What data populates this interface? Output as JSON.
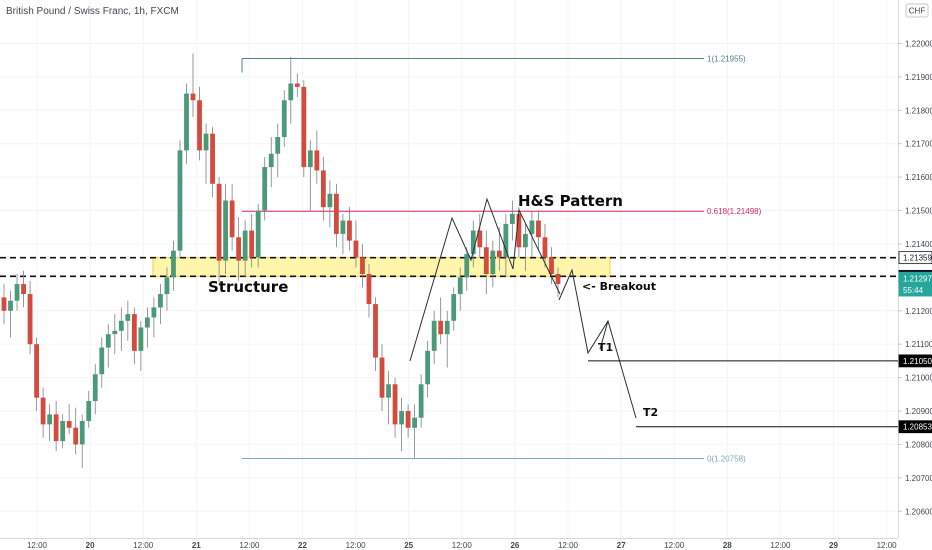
{
  "chart_data": {
    "type": "candlestick",
    "title": "British Pound / Swiss Franc, 1h, FXCM",
    "currency_label": "CHF",
    "y_ticks": [
      "1.22000",
      "1.21900",
      "1.21800",
      "1.21700",
      "1.21600",
      "1.21500",
      "1.21400",
      "1.21200",
      "1.21100",
      "1.21000",
      "1.20900",
      "1.20800",
      "1.20700",
      "1.20600"
    ],
    "x_ticks": [
      "12:00",
      "20",
      "12:00",
      "21",
      "12:00",
      "22",
      "12:00",
      "25",
      "12:00",
      "26",
      "12:00",
      "27",
      "12:00",
      "28",
      "12:00",
      "29",
      "12:00"
    ],
    "ylim": [
      1.2052,
      1.2213
    ],
    "fib_levels": [
      {
        "label": "1(1.21955)",
        "value": 1.21955,
        "color": "#4f7f8c"
      },
      {
        "label": "0.618(1.21498)",
        "value": 1.21498,
        "color": "#e0245e"
      },
      {
        "label": "0(1.20758)",
        "value": 1.20758,
        "color": "#7fa7bf"
      }
    ],
    "dashed_levels": [
      {
        "label": "1.21359",
        "value": 1.21359
      },
      {
        "label": "1.21303",
        "value": 1.21303
      }
    ],
    "price_badges": [
      {
        "label": "1.21297",
        "value": 1.21297,
        "color": "#26a69a"
      },
      {
        "label": "55:44",
        "value": 1.21262,
        "color": "#26a69a"
      },
      {
        "label": "1.21050",
        "value": 1.2105,
        "color": "#000000"
      },
      {
        "label": "1.20853",
        "value": 1.20853,
        "color": "#000000"
      }
    ],
    "annotations": {
      "pattern": "H&S Pattern",
      "structure": "Structure",
      "breakout": "<- Breakout",
      "t1": "T1",
      "t2": "T2"
    },
    "candle_colors": {
      "up": "#4a9a7a",
      "down": "#d44a3d"
    },
    "zone": {
      "top": 1.21359,
      "bottom": 1.21303,
      "color": "#fff59d"
    },
    "candles": [
      [
        1.2124,
        1.2128,
        1.2116,
        1.212
      ],
      [
        1.212,
        1.2126,
        1.2112,
        1.2123
      ],
      [
        1.2123,
        1.2131,
        1.212,
        1.2128
      ],
      [
        1.2128,
        1.2132,
        1.2121,
        1.2125
      ],
      [
        1.2125,
        1.2129,
        1.2107,
        1.211
      ],
      [
        1.211,
        1.2112,
        1.209,
        1.2094
      ],
      [
        1.2094,
        1.2097,
        1.2082,
        1.2086
      ],
      [
        1.2086,
        1.2092,
        1.2081,
        1.2089
      ],
      [
        1.2089,
        1.2093,
        1.2078,
        1.2081
      ],
      [
        1.2081,
        1.2089,
        1.2079,
        1.2087
      ],
      [
        1.2087,
        1.2092,
        1.2083,
        1.2085
      ],
      [
        1.2085,
        1.2091,
        1.2077,
        1.208
      ],
      [
        1.208,
        1.2089,
        1.2073,
        1.2087
      ],
      [
        1.2087,
        1.2096,
        1.2085,
        1.2093
      ],
      [
        1.2093,
        1.2104,
        1.2089,
        1.2101
      ],
      [
        1.2101,
        1.2112,
        1.2097,
        1.2109
      ],
      [
        1.2109,
        1.2116,
        1.2103,
        1.2113
      ],
      [
        1.2113,
        1.2119,
        1.2107,
        1.2114
      ],
      [
        1.2114,
        1.2121,
        1.2108,
        1.2117
      ],
      [
        1.2117,
        1.2123,
        1.2111,
        1.2119
      ],
      [
        1.2119,
        1.2121,
        1.2104,
        1.2108
      ],
      [
        1.2108,
        1.2117,
        1.2102,
        1.2115
      ],
      [
        1.2115,
        1.2121,
        1.2109,
        1.2118
      ],
      [
        1.2118,
        1.2124,
        1.2112,
        1.2121
      ],
      [
        1.2121,
        1.2128,
        1.2116,
        1.2125
      ],
      [
        1.2125,
        1.2133,
        1.212,
        1.213
      ],
      [
        1.213,
        1.2141,
        1.2126,
        1.2138
      ],
      [
        1.2138,
        1.2171,
        1.2136,
        1.2168
      ],
      [
        1.2168,
        1.2188,
        1.2164,
        1.2185
      ],
      [
        1.2185,
        1.2197,
        1.2178,
        1.2183
      ],
      [
        1.2183,
        1.2187,
        1.2165,
        1.2168
      ],
      [
        1.2168,
        1.2176,
        1.2158,
        1.2173
      ],
      [
        1.2173,
        1.2175,
        1.2154,
        1.2158
      ],
      [
        1.2158,
        1.216,
        1.2128,
        1.2135
      ],
      [
        1.2135,
        1.2158,
        1.2131,
        1.2153
      ],
      [
        1.2153,
        1.2158,
        1.2138,
        1.2142
      ],
      [
        1.2142,
        1.2148,
        1.2129,
        1.2135
      ],
      [
        1.2135,
        1.2147,
        1.213,
        1.2144
      ],
      [
        1.2144,
        1.2149,
        1.2133,
        1.2136
      ],
      [
        1.2136,
        1.2152,
        1.2133,
        1.215
      ],
      [
        1.215,
        1.2166,
        1.2147,
        1.2163
      ],
      [
        1.2163,
        1.2172,
        1.2157,
        1.2167
      ],
      [
        1.2167,
        1.2176,
        1.216,
        1.2172
      ],
      [
        1.2172,
        1.2186,
        1.2169,
        1.2183
      ],
      [
        1.2183,
        1.2196,
        1.2176,
        1.2188
      ],
      [
        1.2188,
        1.2191,
        1.2184,
        1.2187
      ],
      [
        1.2187,
        1.2189,
        1.216,
        1.2163
      ],
      [
        1.2163,
        1.2171,
        1.215,
        1.2168
      ],
      [
        1.2168,
        1.2174,
        1.2158,
        1.2162
      ],
      [
        1.2162,
        1.2166,
        1.2147,
        1.2151
      ],
      [
        1.2151,
        1.2159,
        1.2145,
        1.2155
      ],
      [
        1.2155,
        1.2158,
        1.2139,
        1.2143
      ],
      [
        1.2143,
        1.2149,
        1.2137,
        1.2147
      ],
      [
        1.2147,
        1.2151,
        1.2138,
        1.2141
      ],
      [
        1.2141,
        1.2147,
        1.2133,
        1.2136
      ],
      [
        1.2136,
        1.214,
        1.2127,
        1.2131
      ],
      [
        1.2131,
        1.2134,
        1.2118,
        1.2122
      ],
      [
        1.2122,
        1.2124,
        1.2102,
        1.2106
      ],
      [
        1.2106,
        1.211,
        1.209,
        1.2094
      ],
      [
        1.2094,
        1.2102,
        1.2086,
        1.2098
      ],
      [
        1.2098,
        1.21,
        1.2082,
        1.2086
      ],
      [
        1.2086,
        1.2094,
        1.2078,
        1.209
      ],
      [
        1.209,
        1.2092,
        1.2082,
        1.2085
      ],
      [
        1.2085,
        1.2092,
        1.2076,
        1.2088
      ],
      [
        1.2088,
        1.2101,
        1.2085,
        1.2098
      ],
      [
        1.2098,
        1.2111,
        1.2094,
        1.2108
      ],
      [
        1.2108,
        1.212,
        1.2104,
        1.2117
      ],
      [
        1.2117,
        1.2124,
        1.211,
        1.2113
      ],
      [
        1.2113,
        1.212,
        1.2103,
        1.2117
      ],
      [
        1.2117,
        1.2127,
        1.2114,
        1.2125
      ],
      [
        1.2125,
        1.2133,
        1.212,
        1.213
      ],
      [
        1.213,
        1.2139,
        1.2126,
        1.2137
      ],
      [
        1.2137,
        1.2147,
        1.2133,
        1.2144
      ],
      [
        1.2144,
        1.2149,
        1.2136,
        1.2139
      ],
      [
        1.2139,
        1.2144,
        1.2125,
        1.2131
      ],
      [
        1.2131,
        1.2141,
        1.2127,
        1.2138
      ],
      [
        1.2138,
        1.2145,
        1.2132,
        1.2136
      ],
      [
        1.2136,
        1.2149,
        1.213,
        1.2146
      ],
      [
        1.2146,
        1.2153,
        1.2141,
        1.2149
      ],
      [
        1.2149,
        1.2151,
        1.2136,
        1.2139
      ],
      [
        1.2139,
        1.2146,
        1.2132,
        1.2143
      ],
      [
        1.2143,
        1.215,
        1.2136,
        1.2147
      ],
      [
        1.2147,
        1.215,
        1.2138,
        1.2142
      ],
      [
        1.2142,
        1.2146,
        1.2133,
        1.2136
      ],
      [
        1.2136,
        1.2139,
        1.2128,
        1.2131
      ],
      [
        1.2131,
        1.2133,
        1.2124,
        1.2128
      ]
    ]
  }
}
